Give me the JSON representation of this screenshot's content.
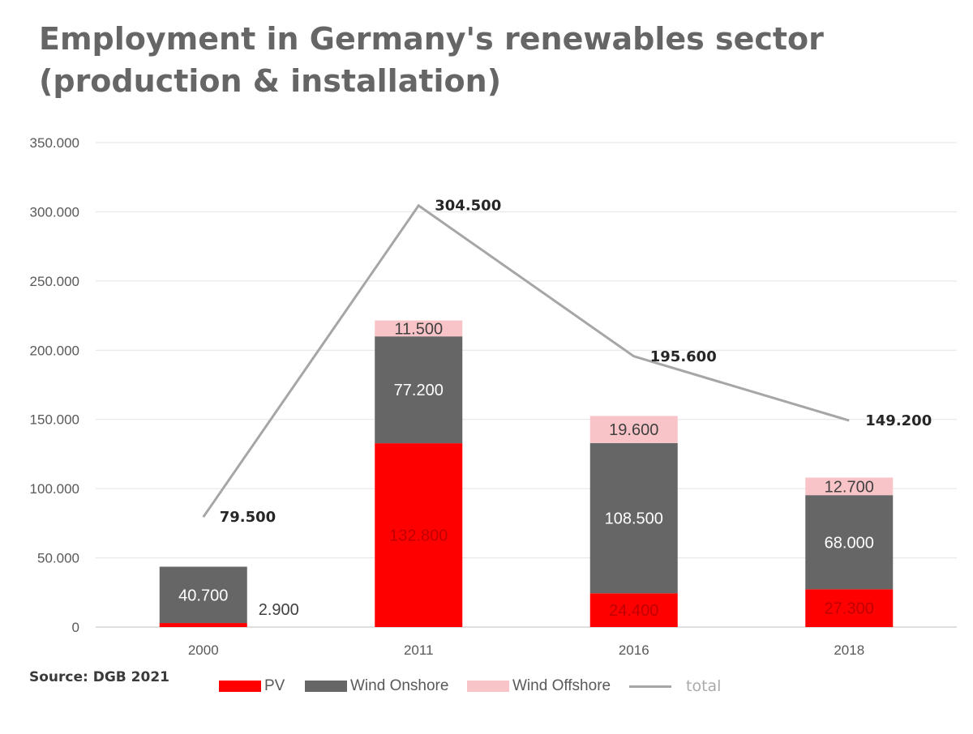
{
  "chart_data": {
    "type": "bar",
    "stacked": true,
    "title_lines": [
      "Employment in Germany's renewables sector",
      "(production & installation)"
    ],
    "categories": [
      "2000",
      "2011",
      "2016",
      "2018"
    ],
    "y_ticks": [
      "0",
      "50.000",
      "100.000",
      "150.000",
      "200.000",
      "250.000",
      "300.000",
      "350.000"
    ],
    "ylim": [
      0,
      350000
    ],
    "grid": true,
    "series": [
      {
        "name": "PV",
        "color": "#ff0000",
        "values": [
          2900,
          132800,
          24400,
          27300
        ],
        "labels": [
          "2.900",
          "132.800",
          "24.400",
          "27.300"
        ]
      },
      {
        "name": "Wind Onshore",
        "color": "#666666",
        "values": [
          40700,
          77200,
          108500,
          68000
        ],
        "labels": [
          "40.700",
          "77.200",
          "108.500",
          "68.000"
        ]
      },
      {
        "name": "Wind Offshore",
        "color": "#f8c4c8",
        "values": [
          0,
          11500,
          19600,
          12700
        ],
        "labels": [
          "",
          "11.500",
          "19.600",
          "12.700"
        ]
      }
    ],
    "line_series": {
      "name": "total",
      "color": "#a6a6a6",
      "values": [
        79500,
        304500,
        195600,
        149200
      ],
      "labels": [
        "79.500",
        "304.500",
        "195.600",
        "149.200"
      ]
    },
    "legend_position": "bottom",
    "source": "Source: DGB 2021"
  }
}
